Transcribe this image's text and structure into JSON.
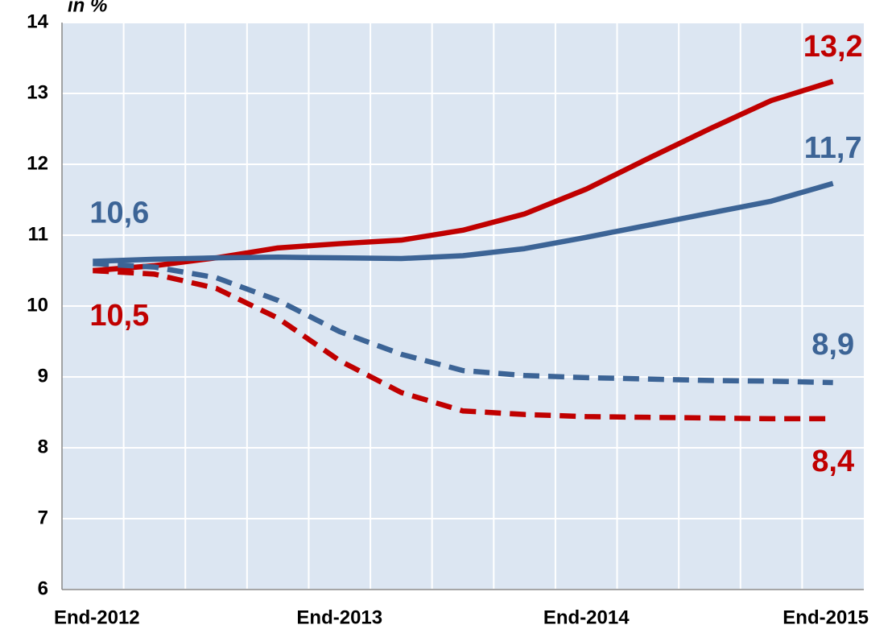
{
  "chart_data": {
    "type": "line",
    "y_label": "in %",
    "categories": [
      "End-2012",
      null,
      null,
      null,
      "End-2013",
      null,
      null,
      null,
      "End-2014",
      null,
      null,
      null,
      "End-2015"
    ],
    "ylim": [
      6,
      14
    ],
    "yticks": [
      6,
      7,
      8,
      9,
      10,
      11,
      12,
      13,
      14
    ],
    "grid": true,
    "series": [
      {
        "color": "#c00000",
        "style": "solid",
        "values": [
          10.5,
          10.57,
          10.68,
          10.82,
          10.88,
          10.93,
          11.07,
          11.3,
          11.65,
          12.08,
          12.5,
          12.9,
          13.17
        ],
        "value_labels": [
          "10,5",
          null,
          null,
          null,
          null,
          null,
          null,
          null,
          null,
          null,
          null,
          null,
          "13,2"
        ]
      },
      {
        "color": "#3c6496",
        "style": "solid",
        "values": [
          10.63,
          10.66,
          10.68,
          10.69,
          10.68,
          10.67,
          10.71,
          10.81,
          10.97,
          11.14,
          11.31,
          11.48,
          11.73
        ],
        "value_labels": [
          "10,6",
          null,
          null,
          null,
          null,
          null,
          null,
          null,
          null,
          null,
          null,
          null,
          "11,7"
        ]
      },
      {
        "color": "#3c6496",
        "style": "dashed",
        "values": [
          10.6,
          10.55,
          10.4,
          10.08,
          9.64,
          9.32,
          9.09,
          9.02,
          8.99,
          8.97,
          8.95,
          8.94,
          8.92
        ],
        "value_labels": [
          null,
          null,
          null,
          null,
          null,
          null,
          null,
          null,
          null,
          null,
          null,
          null,
          "8,9"
        ]
      },
      {
        "color": "#c00000",
        "style": "dashed",
        "values": [
          10.5,
          10.45,
          10.25,
          9.83,
          9.23,
          8.78,
          8.52,
          8.47,
          8.44,
          8.43,
          8.42,
          8.41,
          8.41
        ],
        "value_labels": [
          null,
          null,
          null,
          null,
          null,
          null,
          null,
          null,
          null,
          null,
          null,
          null,
          "8,4"
        ]
      }
    ]
  }
}
